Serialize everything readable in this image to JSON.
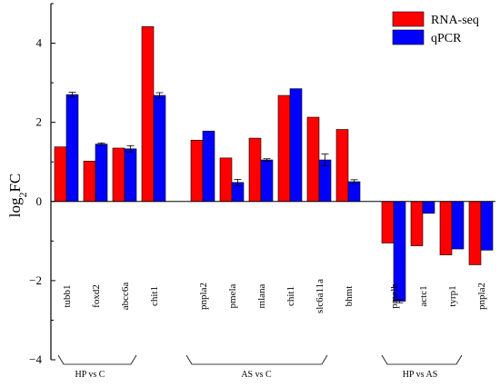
{
  "chart_data": {
    "type": "bar",
    "ylabel": "log2FC",
    "ylim": [
      -4,
      5
    ],
    "yticks": [
      -4,
      -2,
      0,
      2,
      4
    ],
    "legend_position": "top-right",
    "series": [
      {
        "name": "RNA-seq",
        "color": "#ff0000"
      },
      {
        "name": "qPCR",
        "color": "#0000ff"
      }
    ],
    "groups": [
      {
        "label": "HP vs C",
        "categories": [
          "tubb1",
          "foxd2",
          "abcc6a",
          "chit1"
        ],
        "rna_seq": [
          1.38,
          1.02,
          1.35,
          4.42
        ],
        "qpcr": [
          2.7,
          1.45,
          1.33,
          2.68
        ],
        "qpcr_err": [
          0.06,
          0.03,
          0.08,
          0.07
        ]
      },
      {
        "label": "AS vs C",
        "categories": [
          "pnpla2",
          "pmela",
          "mlana",
          "chit1",
          "slc6a11a",
          "bhmt"
        ],
        "rna_seq": [
          1.55,
          1.1,
          1.6,
          2.68,
          2.13,
          1.82
        ],
        "qpcr": [
          1.78,
          0.48,
          1.05,
          2.85,
          1.05,
          0.5
        ],
        "qpcr_err": [
          0.0,
          0.08,
          0.03,
          0.0,
          0.15,
          0.05
        ]
      },
      {
        "label": "HP vs AS",
        "categories": [
          "pmelb",
          "actc1",
          "tyrp1",
          "pnpla2"
        ],
        "rna_seq": [
          -1.05,
          -1.12,
          -1.35,
          -1.6
        ],
        "qpcr": [
          -2.52,
          -0.3,
          -1.2,
          -1.23
        ],
        "qpcr_err": [
          0.04,
          0.0,
          0.0,
          0.0
        ]
      }
    ]
  }
}
